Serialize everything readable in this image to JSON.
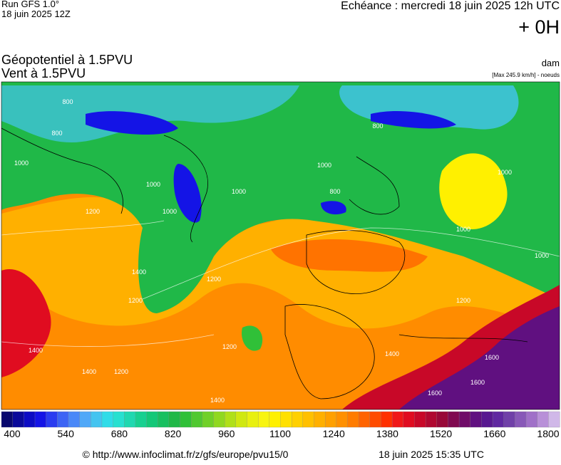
{
  "header": {
    "run": "Run GFS 1.0°",
    "run_date": "18 juin 2025 12Z",
    "valid_time": "Echéance : mercredi 18 juin 2025 12h UTC",
    "lead": "+ 0H",
    "field_1": "Géopotentiel à 1.5PVU",
    "field_2": "Vent à 1.5PVU",
    "unit": "dam",
    "wind_note": "[Max 245.9 km/h] - noeuds"
  },
  "map": {
    "contour_labels": [
      "800",
      "800",
      "1000",
      "1000",
      "1000",
      "800",
      "1000",
      "1000",
      "800",
      "1000",
      "1000",
      "1200",
      "1200",
      "1200",
      "1400",
      "1400",
      "1400",
      "1200",
      "1200",
      "1400",
      "1600",
      "1600",
      "1600",
      "1000",
      "1200",
      "1400"
    ]
  },
  "colorbar": {
    "colors": [
      "#08086e",
      "#0a0a9a",
      "#0c0cc4",
      "#1414e6",
      "#2a3cf0",
      "#3c64f5",
      "#4a88f8",
      "#50a8f8",
      "#44c4f0",
      "#30dce8",
      "#28e0d0",
      "#20d8b0",
      "#18d090",
      "#14c878",
      "#18c060",
      "#20b848",
      "#30c038",
      "#50c830",
      "#70d028",
      "#90d820",
      "#b0e018",
      "#d0e810",
      "#e8f010",
      "#f8f410",
      "#fff000",
      "#ffe000",
      "#ffd000",
      "#ffc000",
      "#ffb000",
      "#ffa000",
      "#ff9000",
      "#ff7c00",
      "#ff6400",
      "#ff4c00",
      "#ff3000",
      "#f01818",
      "#e00c20",
      "#c80828",
      "#b00830",
      "#980838",
      "#800a50",
      "#700c68",
      "#601080",
      "#581890",
      "#6028a0",
      "#7040a8",
      "#8858b8",
      "#a070c8",
      "#b890d8",
      "#d0b8e8"
    ],
    "ticks": [
      400,
      540,
      680,
      820,
      960,
      1100,
      1240,
      1380,
      1520,
      1660,
      1800
    ]
  },
  "footer": {
    "url": "© http://www.infoclimat.fr/z/gfs/europe/pvu15/0",
    "generated": "18 juin 2025 15:35 UTC"
  }
}
